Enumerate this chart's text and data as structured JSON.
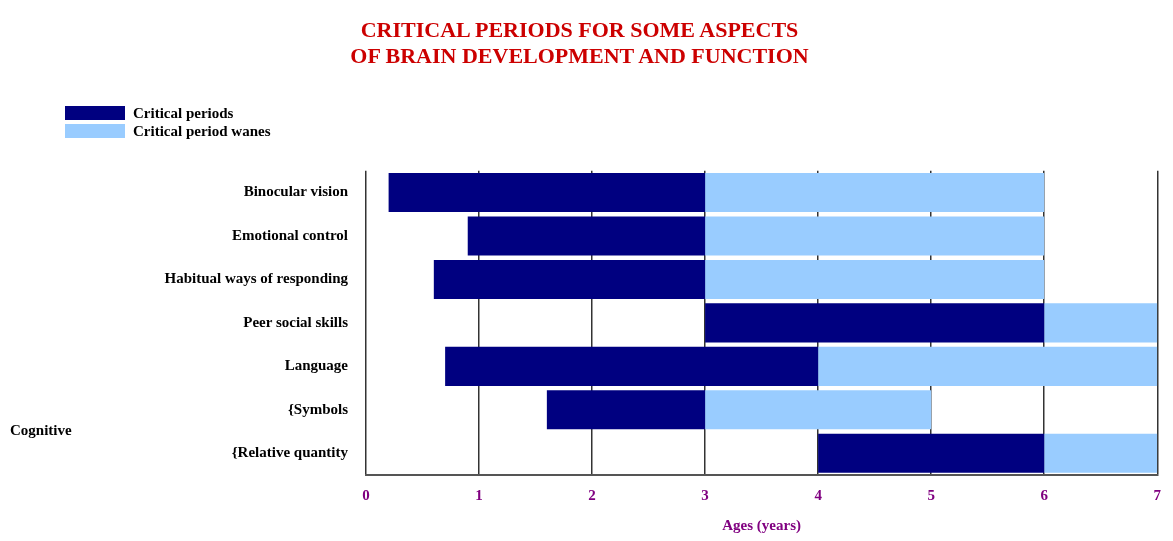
{
  "chart_data": {
    "type": "bar",
    "orientation": "horizontal",
    "title": [
      "CRITICAL PERIODS FOR SOME ASPECTS",
      "OF BRAIN DEVELOPMENT AND FUNCTION"
    ],
    "xlabel": "Ages (years)",
    "categories": [
      "Binocular vision",
      "Emotional control",
      "Habitual ways of responding",
      "Peer social skills",
      "Language",
      "{Symbols",
      "{Relative quantity"
    ],
    "series": [
      {
        "name": "Critical periods",
        "color": "#000080",
        "base": [
          0.2,
          0.9,
          0.6,
          3,
          0.7,
          1.6,
          4
        ],
        "values": [
          2.8,
          2.1,
          2.4,
          3,
          3.3,
          1.4,
          2
        ]
      },
      {
        "name": "Critical period wanes",
        "color": "#99ccff",
        "base": [
          3,
          3,
          3,
          6,
          4,
          3,
          6
        ],
        "values": [
          3,
          3,
          3,
          1,
          3,
          2,
          1
        ]
      }
    ],
    "xlim": [
      0,
      7
    ],
    "xticks": [
      0,
      1,
      2,
      3,
      4,
      5,
      6,
      7
    ],
    "grid": "x",
    "legend": "top left",
    "annotations": [
      "Cognitive"
    ]
  }
}
